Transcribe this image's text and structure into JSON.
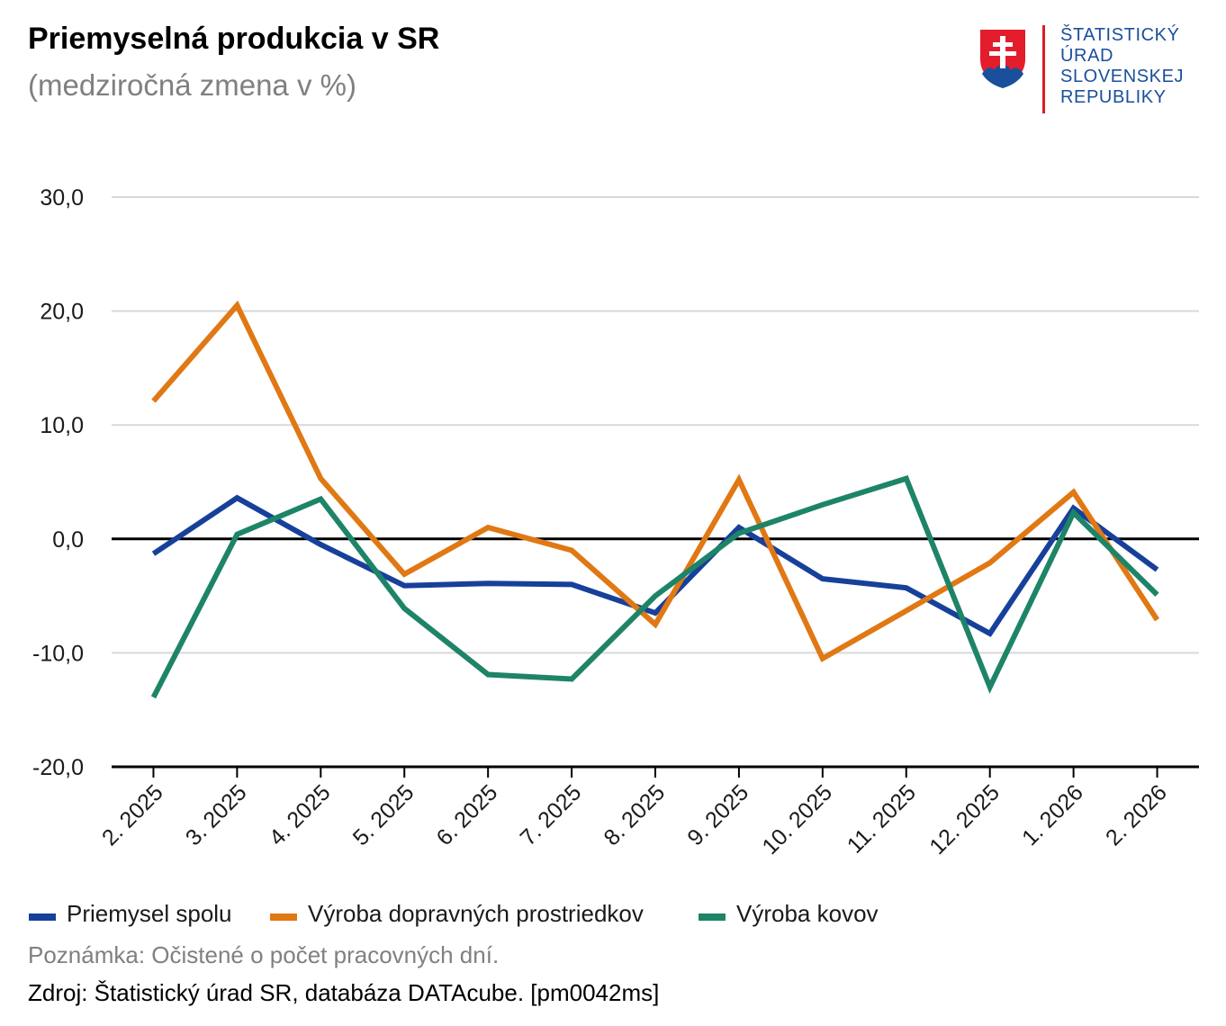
{
  "header": {
    "title": "Priemyselná produkcia v SR",
    "subtitle": "(medziročná zmena v %)"
  },
  "logo": {
    "lines": [
      "ŠTATISTICKÝ",
      "ÚRAD",
      "SLOVENSKEJ",
      "REPUBLIKY"
    ],
    "color_text": "#1a4f9c",
    "color_accent": "#d81e28"
  },
  "chart_data": {
    "type": "line",
    "title": "Priemyselná produkcia v SR",
    "subtitle": "(medziročná zmena v %)",
    "xlabel": "",
    "ylabel": "",
    "categories": [
      "2. 2025",
      "3. 2025",
      "4. 2025",
      "5. 2025",
      "6. 2025",
      "7. 2025",
      "8. 2025",
      "9. 2025",
      "10. 2025",
      "11. 2025",
      "12. 2025",
      "1. 2026",
      "2. 2026"
    ],
    "ylim": [
      -20,
      30
    ],
    "yticks": [
      30,
      20,
      10,
      0,
      -10,
      -20
    ],
    "ytick_labels": [
      "30,0",
      "20,0",
      "10,0",
      "0,0",
      "-10,0",
      "-20,0"
    ],
    "grid": true,
    "legend_position": "bottom",
    "series": [
      {
        "name": "Priemysel spolu",
        "color": "#17409b",
        "values": [
          -1.3,
          3.6,
          -0.5,
          -4.1,
          -3.9,
          -4.0,
          -6.5,
          1.0,
          -3.5,
          -4.3,
          -8.3,
          2.7,
          -2.7
        ]
      },
      {
        "name": "Výroba dopravných prostriedkov",
        "color": "#e07814",
        "values": [
          12.1,
          20.5,
          5.3,
          -3.1,
          1.0,
          -1.0,
          -7.5,
          5.2,
          -10.5,
          -6.3,
          -2.1,
          4.1,
          -7.1
        ]
      },
      {
        "name": "Výroba kovov",
        "color": "#1e8468",
        "values": [
          -13.9,
          0.4,
          3.5,
          -6.1,
          -11.9,
          -12.3,
          -5.0,
          0.5,
          3.0,
          5.3,
          -13.0,
          2.3,
          -4.9
        ]
      }
    ]
  },
  "footer": {
    "note": "Poznámka: Očistené o počet pracovných dní.",
    "source": "Zdroj: Štatistický úrad SR, databáza DATAcube. [pm0042ms]"
  }
}
